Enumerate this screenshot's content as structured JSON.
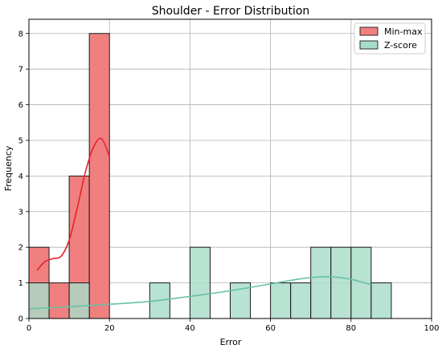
{
  "chart_data": {
    "type": "histogram",
    "title": "Shoulder - Error Distribution",
    "xlabel": "Error",
    "ylabel": "Frequency",
    "xlim": [
      0,
      100
    ],
    "ylim": [
      0,
      8.4
    ],
    "x_ticks": [
      "0",
      "20",
      "40",
      "60",
      "80",
      "100"
    ],
    "y_ticks": [
      "0",
      "1",
      "2",
      "3",
      "4",
      "5",
      "6",
      "7",
      "8"
    ],
    "grid": true,
    "legend_position": "top-right",
    "series": [
      {
        "name": "Min-max",
        "color": "#f08080",
        "line_color": "#e3232c",
        "bins": [
          {
            "x0": 0,
            "x1": 5,
            "count": 2
          },
          {
            "x0": 5,
            "x1": 10,
            "count": 1
          },
          {
            "x0": 10,
            "x1": 15,
            "count": 4
          },
          {
            "x0": 15,
            "x1": 20,
            "count": 8
          }
        ],
        "kde": [
          [
            2,
            1.35
          ],
          [
            4,
            1.6
          ],
          [
            6,
            1.68
          ],
          [
            8,
            1.75
          ],
          [
            10,
            2.2
          ],
          [
            12,
            3.1
          ],
          [
            14,
            4.1
          ],
          [
            16,
            4.8
          ],
          [
            18,
            5.05
          ],
          [
            20,
            4.55
          ]
        ]
      },
      {
        "name": "Z-score",
        "color": "#a8dcc8",
        "line_color": "#66c2a5",
        "bins": [
          {
            "x0": 0,
            "x1": 5,
            "count": 1
          },
          {
            "x0": 10,
            "x1": 15,
            "count": 1
          },
          {
            "x0": 30,
            "x1": 35,
            "count": 1
          },
          {
            "x0": 40,
            "x1": 45,
            "count": 2
          },
          {
            "x0": 50,
            "x1": 55,
            "count": 1
          },
          {
            "x0": 60,
            "x1": 65,
            "count": 1
          },
          {
            "x0": 65,
            "x1": 70,
            "count": 1
          },
          {
            "x0": 70,
            "x1": 75,
            "count": 2
          },
          {
            "x0": 75,
            "x1": 80,
            "count": 2
          },
          {
            "x0": 80,
            "x1": 85,
            "count": 2
          },
          {
            "x0": 85,
            "x1": 90,
            "count": 1
          }
        ],
        "kde": [
          [
            0,
            0.27
          ],
          [
            10,
            0.33
          ],
          [
            20,
            0.4
          ],
          [
            30,
            0.48
          ],
          [
            40,
            0.62
          ],
          [
            50,
            0.78
          ],
          [
            60,
            0.97
          ],
          [
            65,
            1.07
          ],
          [
            70,
            1.15
          ],
          [
            75,
            1.17
          ],
          [
            80,
            1.1
          ],
          [
            85,
            0.95
          ]
        ]
      }
    ]
  }
}
